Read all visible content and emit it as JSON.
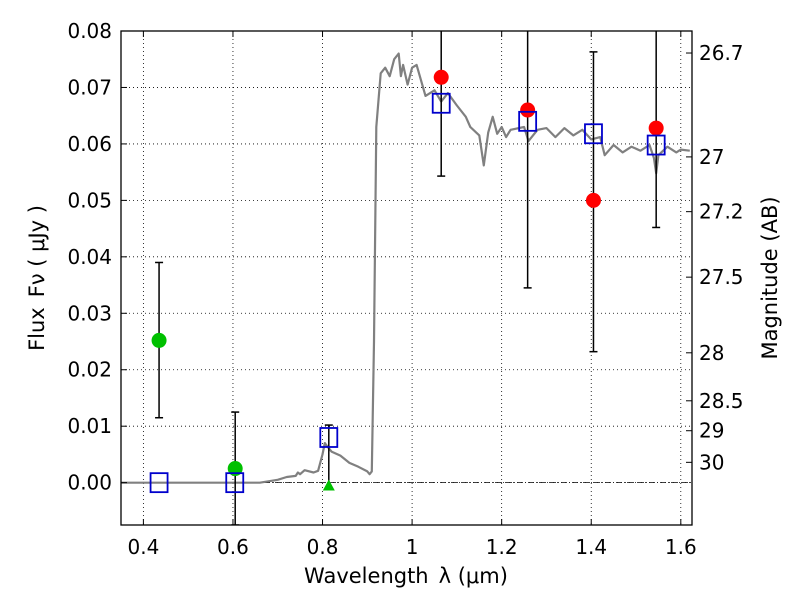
{
  "chart_data": {
    "type": "scatter",
    "title": "",
    "xlabel": "Wavelength",
    "xlabel_symbol": "λ (μm)",
    "ylabel": "Flux",
    "ylabel_symbol": "Fν  ( μJy )",
    "y2label": "Magnitude (AB)",
    "xlim": [
      0.35,
      1.625
    ],
    "ylim": [
      -0.0075,
      0.08
    ],
    "grid": true,
    "x_ticks": [
      0.4,
      0.6,
      0.8,
      1.0,
      1.2,
      1.4,
      1.6
    ],
    "x_tick_labels": [
      "0.4",
      "0.6",
      "0.8",
      "1",
      "1.2",
      "1.4",
      "1.6"
    ],
    "y_ticks": [
      0,
      0.01,
      0.02,
      0.03,
      0.04,
      0.05,
      0.06,
      0.07,
      0.08
    ],
    "y_tick_labels": [
      "0.00",
      "0.01",
      "0.02",
      "0.03",
      "0.04",
      "0.05",
      "0.06",
      "0.07",
      "0.08"
    ],
    "mag_ticks": [
      {
        "label": "26.7",
        "flux": 0.0761
      },
      {
        "label": "27",
        "flux": 0.0577
      },
      {
        "label": "27.2",
        "flux": 0.048
      },
      {
        "label": "27.5",
        "flux": 0.0364
      },
      {
        "label": "28",
        "flux": 0.023
      },
      {
        "label": "28.5",
        "flux": 0.0145
      },
      {
        "label": "29",
        "flux": 0.0092
      },
      {
        "label": "30",
        "flux": 0.0036
      }
    ],
    "model_spectrum": {
      "x": [
        0.35,
        0.66,
        0.7,
        0.72,
        0.74,
        0.745,
        0.75,
        0.76,
        0.78,
        0.79,
        0.8,
        0.805,
        0.81,
        0.82,
        0.84,
        0.86,
        0.88,
        0.9,
        0.905,
        0.91,
        0.915,
        0.92,
        0.93,
        0.94,
        0.95,
        0.96,
        0.97,
        0.975,
        0.98,
        0.99,
        1.0,
        1.01,
        1.03,
        1.05,
        1.065,
        1.08,
        1.1,
        1.12,
        1.13,
        1.15,
        1.16,
        1.17,
        1.18,
        1.19,
        1.2,
        1.21,
        1.22,
        1.25,
        1.26,
        1.28,
        1.3,
        1.32,
        1.34,
        1.36,
        1.38,
        1.4,
        1.42,
        1.43,
        1.45,
        1.47,
        1.49,
        1.51,
        1.53,
        1.54,
        1.545,
        1.55,
        1.57,
        1.59,
        1.6,
        1.62
      ],
      "y": [
        0.0,
        0.0,
        0.0005,
        0.001,
        0.0012,
        0.0018,
        0.0015,
        0.0022,
        0.0018,
        0.0021,
        0.005,
        0.007,
        0.0065,
        0.0055,
        0.0048,
        0.0035,
        0.0028,
        0.002,
        0.0015,
        0.002,
        0.025,
        0.063,
        0.0725,
        0.0735,
        0.072,
        0.075,
        0.076,
        0.072,
        0.074,
        0.0705,
        0.0735,
        0.074,
        0.0685,
        0.0695,
        0.0675,
        0.069,
        0.0668,
        0.0648,
        0.063,
        0.0615,
        0.0562,
        0.062,
        0.0648,
        0.0618,
        0.063,
        0.0612,
        0.0625,
        0.063,
        0.0605,
        0.0625,
        0.0628,
        0.0612,
        0.0628,
        0.0615,
        0.0625,
        0.0608,
        0.0612,
        0.058,
        0.0598,
        0.0585,
        0.0595,
        0.0588,
        0.0598,
        0.0575,
        0.0548,
        0.058,
        0.0595,
        0.0585,
        0.059,
        0.0588
      ],
      "color": "#808080"
    },
    "series": [
      {
        "name": "",
        "marker": "circle",
        "color": "#00c000",
        "points": [
          {
            "x": 0.435,
            "y": 0.0252,
            "ylo": 0.0115,
            "yhi": 0.039
          },
          {
            "x": 0.605,
            "y": 0.0025,
            "ylo": -0.0075,
            "yhi": 0.0125
          }
        ]
      },
      {
        "name": "",
        "marker": "triangle",
        "color": "#00c000",
        "points": [
          {
            "x": 0.814,
            "y": -0.0005,
            "ylo": null,
            "yhi": 0.0102
          }
        ]
      },
      {
        "name": "",
        "marker": "circle",
        "color": "#ff0000",
        "points": [
          {
            "x": 1.065,
            "y": 0.0718,
            "ylo": 0.0543,
            "yhi": 0.0835
          },
          {
            "x": 1.258,
            "y": 0.066,
            "ylo": 0.0345,
            "yhi": 0.082
          },
          {
            "x": 1.405,
            "y": 0.05,
            "ylo": 0.0232,
            "yhi": 0.0763
          },
          {
            "x": 1.545,
            "y": 0.0628,
            "ylo": 0.0452,
            "yhi": 0.082
          }
        ]
      },
      {
        "name": "",
        "marker": "square",
        "color": "#0000cc",
        "points": [
          {
            "x": 0.435,
            "y": 0.0
          },
          {
            "x": 0.604,
            "y": 0.0
          },
          {
            "x": 0.814,
            "y": 0.008
          },
          {
            "x": 1.065,
            "y": 0.0672
          },
          {
            "x": 1.258,
            "y": 0.064
          },
          {
            "x": 1.405,
            "y": 0.0618
          },
          {
            "x": 1.545,
            "y": 0.0598
          }
        ]
      }
    ]
  }
}
